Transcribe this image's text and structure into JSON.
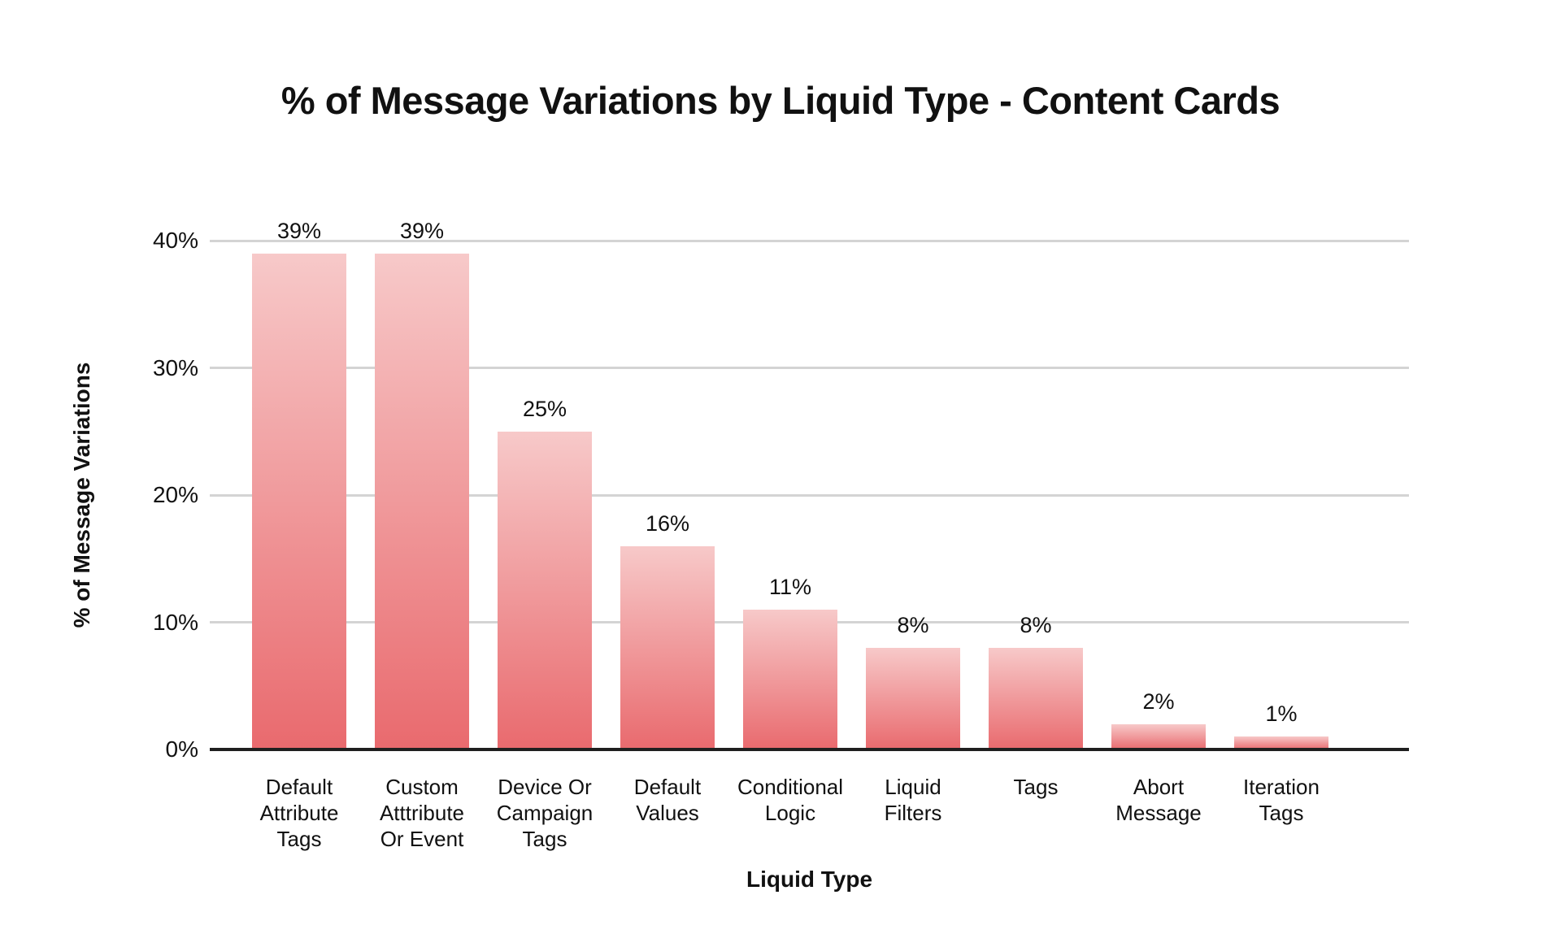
{
  "chart_data": {
    "type": "bar",
    "title": "% of Message Variations by Liquid Type - Content Cards",
    "xlabel": "Liquid Type",
    "ylabel": "% of Message Variations",
    "categories": [
      "Default\nAttribute\nTags",
      "Custom\nAtttribute\nOr Event",
      "Device Or\nCampaign\nTags",
      "Default\nValues",
      "Conditional\nLogic",
      "Liquid\nFilters",
      "Tags",
      "Abort\nMessage",
      "Iteration\nTags"
    ],
    "values": [
      39,
      39,
      25,
      16,
      11,
      8,
      8,
      2,
      1
    ],
    "data_labels": [
      "39%",
      "39%",
      "25%",
      "16%",
      "11%",
      "8%",
      "8%",
      "2%",
      "1%"
    ],
    "y_ticks": [
      "0%",
      "10%",
      "20%",
      "30%",
      "40%"
    ],
    "y_tick_values": [
      0,
      10,
      20,
      30,
      40
    ],
    "ylim": [
      0,
      40
    ],
    "grid": true,
    "legend": false,
    "colors": {
      "bar_gradient_top": "#f7c9c9",
      "bar_gradient_bottom": "#e96a6e",
      "gridline": "#d4d4d4",
      "axis_line": "#1f1f1f",
      "text": "#111111",
      "background": "#ffffff"
    }
  }
}
